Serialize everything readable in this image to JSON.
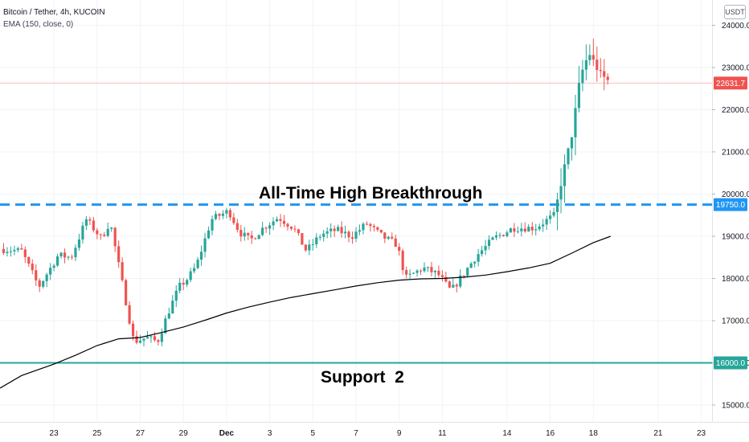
{
  "header": {
    "title": "Bitcoin / Tether, 4h, KUCOIN",
    "indicator": "EMA (150, close, 0)"
  },
  "currency": "USDT",
  "annotations": {
    "ath_label": "All-Time High Breakthrough",
    "support_label": "Support  2"
  },
  "chart_data": {
    "type": "candlestick",
    "title": "Bitcoin / Tether, 4h, KUCOIN",
    "y_ticks": [
      "15000.0",
      "16000.0",
      "17000.0",
      "18000.0",
      "19000.0",
      "20000.0",
      "21000.0",
      "22000.0",
      "23000.0",
      "24000.0"
    ],
    "y_tick_values": [
      15000,
      16000,
      17000,
      18000,
      19000,
      20000,
      21000,
      22000,
      23000,
      24000
    ],
    "x_ticks": [
      "23",
      "25",
      "27",
      "29",
      "Dec",
      "3",
      "5",
      "7",
      "9",
      "11",
      "14",
      "16",
      "18",
      "21",
      "23"
    ],
    "x_tick_days": [
      0,
      2,
      4,
      6,
      8,
      10,
      12,
      14,
      16,
      18,
      21,
      23,
      25,
      28,
      30
    ],
    "ylim": [
      14600,
      24600
    ],
    "xlim_days": [
      -2.5,
      30.5
    ],
    "price_labels": [
      {
        "value": 22631.7,
        "text": "22631.7",
        "color": "#ef5350"
      },
      {
        "value": 19750,
        "text": "19750.0",
        "color": "#2196f3"
      },
      {
        "value": 16000,
        "text": "16000.0",
        "color": "#26a69a"
      }
    ],
    "levels": [
      {
        "value": 19750,
        "style": "dashed",
        "color": "#2196f3"
      },
      {
        "value": 16000,
        "style": "solid",
        "color": "#26a69a"
      }
    ],
    "last_price_line": 22631.7,
    "colors": {
      "up": "#26a69a",
      "down": "#ef5350",
      "ema": "#000000"
    },
    "anchors": [
      [
        -2.5,
        18700
      ],
      [
        -1.5,
        18650
      ],
      [
        -0.7,
        17800
      ],
      [
        0.2,
        18550
      ],
      [
        0.8,
        18500
      ],
      [
        1.5,
        19400
      ],
      [
        2.2,
        18950
      ],
      [
        2.6,
        19350
      ],
      [
        3.2,
        17800
      ],
      [
        3.7,
        16500
      ],
      [
        4.3,
        16600
      ],
      [
        4.8,
        16500
      ],
      [
        5.3,
        17200
      ],
      [
        5.8,
        17800
      ],
      [
        6.2,
        18000
      ],
      [
        6.6,
        18300
      ],
      [
        7.3,
        19400
      ],
      [
        8.1,
        19600
      ],
      [
        8.6,
        19100
      ],
      [
        9.1,
        18900
      ],
      [
        9.7,
        19200
      ],
      [
        10.4,
        19450
      ],
      [
        11.1,
        19200
      ],
      [
        11.7,
        18650
      ],
      [
        12.4,
        19050
      ],
      [
        13.1,
        19150
      ],
      [
        13.8,
        19000
      ],
      [
        14.5,
        19300
      ],
      [
        15.2,
        19000
      ],
      [
        15.9,
        18800
      ],
      [
        16.3,
        18000
      ],
      [
        17.1,
        18250
      ],
      [
        17.8,
        18100
      ],
      [
        18.4,
        17700
      ],
      [
        18.9,
        18050
      ],
      [
        19.6,
        18550
      ],
      [
        20.4,
        18950
      ],
      [
        21.3,
        19200
      ],
      [
        22.3,
        19200
      ],
      [
        23.2,
        19500
      ],
      [
        23.6,
        20500
      ],
      [
        24.0,
        21400
      ],
      [
        24.4,
        22800
      ],
      [
        24.8,
        23350
      ],
      [
        25.3,
        22850
      ],
      [
        25.8,
        22631.7
      ]
    ],
    "ema_points": [
      [
        -2.5,
        15400
      ],
      [
        -1.5,
        15700
      ],
      [
        0,
        15970
      ],
      [
        1,
        16180
      ],
      [
        2,
        16410
      ],
      [
        3,
        16570
      ],
      [
        4,
        16600
      ],
      [
        5,
        16720
      ],
      [
        6,
        16850
      ],
      [
        7,
        17010
      ],
      [
        8,
        17180
      ],
      [
        9,
        17320
      ],
      [
        10,
        17440
      ],
      [
        11,
        17550
      ],
      [
        12,
        17640
      ],
      [
        13,
        17730
      ],
      [
        14,
        17820
      ],
      [
        15,
        17900
      ],
      [
        16,
        17960
      ],
      [
        17,
        17990
      ],
      [
        18,
        18000
      ],
      [
        19,
        18030
      ],
      [
        20,
        18080
      ],
      [
        21,
        18160
      ],
      [
        22,
        18250
      ],
      [
        23,
        18360
      ],
      [
        24,
        18600
      ],
      [
        25,
        18850
      ],
      [
        25.8,
        19000
      ]
    ]
  }
}
